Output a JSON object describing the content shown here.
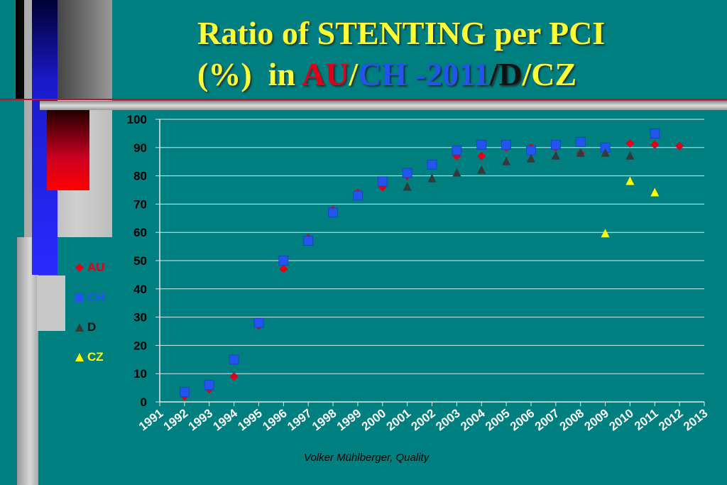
{
  "title": {
    "line1": "Ratio of STENTING per PCI",
    "line2_prefix": "(%)  in ",
    "au": "AU",
    "sep1": "/",
    "ch": "CH -2011",
    "sep2": "/",
    "d": "D",
    "sep3": "/",
    "cz": "CZ"
  },
  "footer": "Volker Mühlberger, Quality",
  "colors": {
    "background": "#007f80",
    "title": "#ffff33",
    "AU": "#e0001a",
    "CH": "#2255ee",
    "D": "#333a3a",
    "CZ": "#ffff00"
  },
  "legend": [
    {
      "name": "AU",
      "marker": "diamond",
      "color": "#e0001a"
    },
    {
      "name": "CH",
      "marker": "square",
      "color": "#2255ee"
    },
    {
      "name": "D",
      "marker": "triangle",
      "color": "#333a3a"
    },
    {
      "name": "CZ",
      "marker": "triangle",
      "color": "#ffff00"
    }
  ],
  "chart_data": {
    "type": "scatter",
    "title": "",
    "xlabel": "",
    "ylabel": "",
    "xlim": [
      1991,
      2013
    ],
    "ylim": [
      0,
      100
    ],
    "x_ticks": [
      "1991",
      "1992",
      "1993",
      "1994",
      "1995",
      "1996",
      "1997",
      "1998",
      "1999",
      "2000",
      "2001",
      "2002",
      "2003",
      "2004",
      "2005",
      "2006",
      "2007",
      "2008",
      "2009",
      "2010",
      "2011",
      "2012",
      "2013"
    ],
    "y_ticks": [
      "0",
      "10",
      "20",
      "30",
      "40",
      "50",
      "60",
      "70",
      "80",
      "90",
      "100"
    ],
    "grid": "horizontal",
    "legend_position": "left",
    "series": [
      {
        "name": "AU",
        "marker": "diamond",
        "points": [
          [
            1992,
            2
          ],
          [
            1993,
            4.5
          ],
          [
            1994,
            9
          ],
          [
            1995,
            27
          ],
          [
            1996,
            47
          ],
          [
            1997,
            58
          ],
          [
            1998,
            68
          ],
          [
            1999,
            74
          ],
          [
            2000,
            76
          ],
          [
            2001,
            80
          ],
          [
            2002,
            84
          ],
          [
            2003,
            87
          ],
          [
            2004,
            87
          ],
          [
            2005,
            90
          ],
          [
            2006,
            90
          ],
          [
            2007,
            90
          ],
          [
            2008,
            88
          ],
          [
            2009,
            89
          ],
          [
            2010,
            91.5
          ],
          [
            2011,
            91
          ],
          [
            2012,
            90.5
          ]
        ]
      },
      {
        "name": "CH",
        "marker": "square",
        "points": [
          [
            1992,
            3.5
          ],
          [
            1993,
            6
          ],
          [
            1994,
            15
          ],
          [
            1995,
            28
          ],
          [
            1996,
            50
          ],
          [
            1997,
            57
          ],
          [
            1998,
            67
          ],
          [
            1999,
            73
          ],
          [
            2000,
            78
          ],
          [
            2001,
            81
          ],
          [
            2002,
            84
          ],
          [
            2003,
            89
          ],
          [
            2004,
            91
          ],
          [
            2005,
            91
          ],
          [
            2006,
            89
          ],
          [
            2007,
            91
          ],
          [
            2008,
            92
          ],
          [
            2009,
            90
          ],
          [
            2011,
            95
          ]
        ]
      },
      {
        "name": "D",
        "marker": "triangle",
        "points": [
          [
            2001,
            76
          ],
          [
            2002,
            79
          ],
          [
            2003,
            81
          ],
          [
            2004,
            82
          ],
          [
            2005,
            85
          ],
          [
            2006,
            86
          ],
          [
            2007,
            87
          ],
          [
            2008,
            88
          ],
          [
            2009,
            88
          ],
          [
            2010,
            87
          ]
        ]
      },
      {
        "name": "CZ",
        "marker": "triangle",
        "points": [
          [
            2009,
            59.5
          ],
          [
            2010,
            78
          ],
          [
            2011,
            74
          ]
        ]
      }
    ]
  }
}
